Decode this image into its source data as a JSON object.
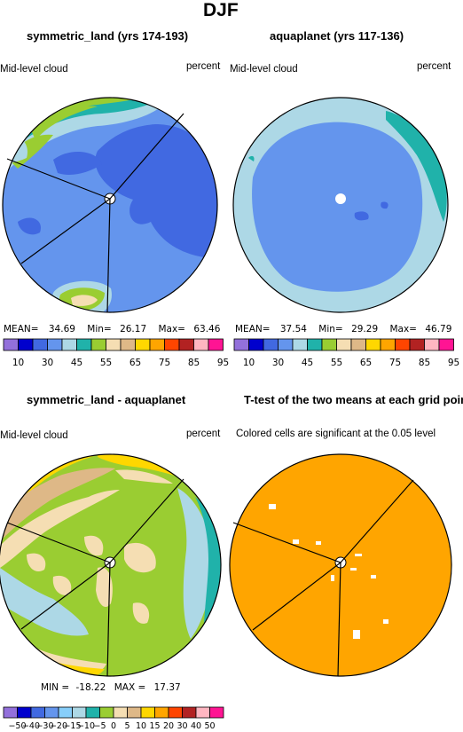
{
  "figure_title": "DJF",
  "colors": {
    "lb1": [
      "#9370db",
      "#0000cd",
      "#4169e1",
      "#6495ed",
      "#add8e6",
      "#20b2aa",
      "#9acd32",
      "#f5deb3",
      "#deb887",
      "#ffd700",
      "#ffa500",
      "#ff4500",
      "#b22222",
      "#ffb6c1",
      "#ff1493"
    ],
    "lb2": [
      "#9370db",
      "#0000cd",
      "#4169e1",
      "#6495ed",
      "#87cefa",
      "#add8e6",
      "#20b2aa",
      "#9acd32",
      "#f5deb3",
      "#deb887",
      "#ffd700",
      "#ffa500",
      "#ff4500",
      "#b22222",
      "#ffb6c1",
      "#ff1493"
    ],
    "ttest_fill": "#ffa500"
  },
  "chart_data": [
    {
      "type": "heatmap",
      "projection": "polar",
      "title": "symmetric_land (yrs 174-193)",
      "left_label": "Mid-level cloud",
      "right_label": "percent",
      "stats": {
        "mean": "34.69",
        "min": "26.17",
        "max": "63.46"
      },
      "stats_text": {
        "mean_label": "MEAN=",
        "min_label": "Min=",
        "max_label": "Max="
      },
      "colorbar_labels": [
        "10",
        "30",
        "45",
        "55",
        "65",
        "75",
        "85",
        "95"
      ]
    },
    {
      "type": "heatmap",
      "projection": "polar",
      "title": "aquaplanet (yrs 117-136)",
      "left_label": "Mid-level cloud",
      "right_label": "percent",
      "stats": {
        "mean": "37.54",
        "min": "29.29",
        "max": "46.79"
      },
      "stats_text": {
        "mean_label": "MEAN=",
        "min_label": "Min=",
        "max_label": "Max="
      },
      "colorbar_labels": [
        "10",
        "30",
        "45",
        "55",
        "65",
        "75",
        "85",
        "95"
      ]
    },
    {
      "type": "heatmap",
      "projection": "polar",
      "title": "symmetric_land - aquaplanet",
      "left_label": "Mid-level cloud",
      "right_label": "percent",
      "stats": {
        "min": "-18.22",
        "max": "17.37"
      },
      "stats_text": {
        "min_label": "MIN =",
        "max_label": "MAX ="
      },
      "colorbar_labels": [
        "−50",
        "−40",
        "−30",
        "−20",
        "−15",
        "−10",
        "−5",
        "0",
        "5",
        "10",
        "15",
        "20",
        "30",
        "40",
        "50"
      ]
    },
    {
      "type": "heatmap",
      "projection": "polar",
      "title": "T-test of the two means at each grid point",
      "subtitle": "Colored cells are significant at the 0.05 level"
    }
  ]
}
